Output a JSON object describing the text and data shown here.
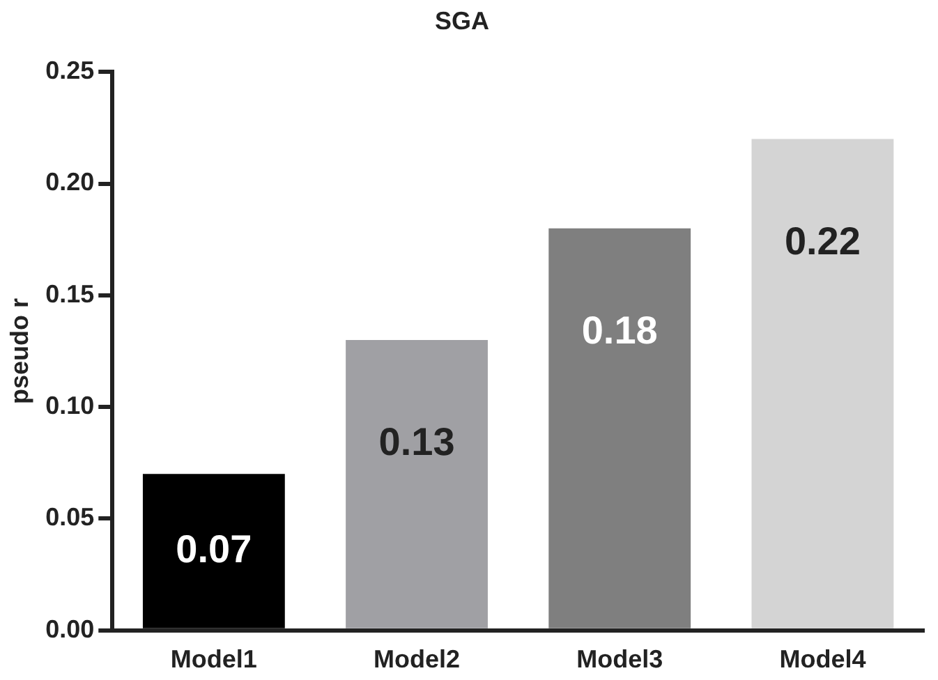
{
  "chart_data": {
    "type": "bar",
    "title": "SGA",
    "ylabel": "pseudo r",
    "categories": [
      "Model1",
      "Model2",
      "Model3",
      "Model4"
    ],
    "values": [
      0.07,
      0.13,
      0.18,
      0.22
    ],
    "colors": [
      "#000000",
      "#a0a0a4",
      "#7f7f7f",
      "#d4d4d4"
    ],
    "ylim": [
      0,
      0.25
    ],
    "yticks": [
      {
        "value": 0,
        "label": "0.00"
      },
      {
        "value": 0.05,
        "label": "0.05"
      },
      {
        "value": 0.1,
        "label": "0.10"
      },
      {
        "value": 0.15,
        "label": "0.15"
      },
      {
        "value": 0.2,
        "label": "0.20"
      },
      {
        "value": 0.25,
        "label": "0.25"
      }
    ],
    "data_labels": true,
    "grid": false,
    "legend": false
  }
}
